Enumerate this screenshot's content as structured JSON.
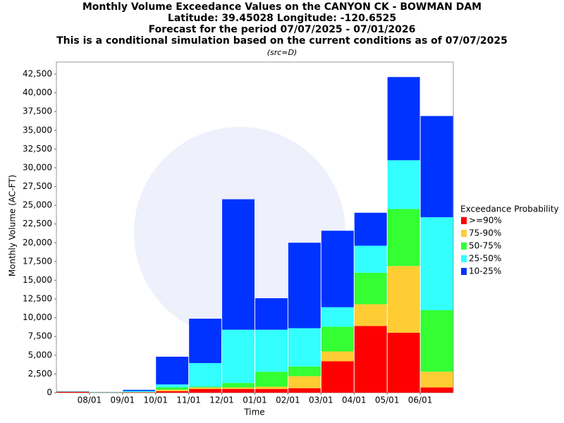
{
  "chart_data": {
    "type": "stacked_bar",
    "title": "Monthly Volume Exceedance Values on the CANYON CK - BOWMAN DAM",
    "subtitle": [
      "Latitude: 39.45028 Longitude: -120.6525",
      "Forecast for the period 07/07/2025 - 07/01/2026",
      "This is a conditional simulation based on the current conditions as of 07/07/2025"
    ],
    "source": "(src=D)",
    "x_label": "Time",
    "y_label": "Monthly Volume (AC-FT)",
    "categories": [
      null,
      "08/01",
      "09/01",
      "10/01",
      "11/01",
      "12/01",
      "01/01",
      "02/01",
      "03/01",
      "04/01",
      "05/01",
      "06/01"
    ],
    "series": [
      {
        "name": ">=90%",
        "color": "#ff0000",
        "values": [
          100,
          30,
          50,
          200,
          500,
          500,
          500,
          600,
          4200,
          8900,
          8000,
          700
        ]
      },
      {
        "name": "75-90%",
        "color": "#ffcc33",
        "values": [
          20,
          10,
          20,
          200,
          200,
          200,
          300,
          1600,
          1300,
          2900,
          8900,
          2100
        ]
      },
      {
        "name": "50-75%",
        "color": "#33ff33",
        "values": [
          20,
          10,
          30,
          300,
          100,
          600,
          2000,
          1300,
          3300,
          4200,
          7600,
          8200
        ]
      },
      {
        "name": "25-50%",
        "color": "#33ffff",
        "values": [
          20,
          40,
          130,
          400,
          3150,
          7100,
          5600,
          5100,
          2600,
          3600,
          6500,
          12400
        ]
      },
      {
        "name": "10-25%",
        "color": "#0033ff",
        "values": [
          40,
          10,
          150,
          3700,
          5920,
          17400,
          4200,
          11400,
          10200,
          4400,
          11100,
          13500
        ]
      }
    ],
    "legend_title": "Exceedance Probability",
    "legend": "right",
    "ylim": [
      0,
      44100
    ],
    "yticks": [
      0,
      {
        "value": 2500,
        "label": "2,500"
      },
      {
        "value": 5000,
        "label": "5,000"
      },
      {
        "value": 7500,
        "label": "7,500"
      },
      {
        "value": 10000,
        "label": "10,000"
      },
      {
        "value": 12500,
        "label": "12,500"
      },
      {
        "value": 15000,
        "label": "15,000"
      },
      {
        "value": 17500,
        "label": "17,500"
      },
      {
        "value": 20000,
        "label": "20,000"
      },
      {
        "value": 22500,
        "label": "22,500"
      },
      {
        "value": 25000,
        "label": "25,000"
      },
      {
        "value": 27500,
        "label": "27,500"
      },
      {
        "value": 30000,
        "label": "30,000"
      },
      {
        "value": 32500,
        "label": "32,500"
      },
      {
        "value": 35000,
        "label": "35,000"
      },
      {
        "value": 37500,
        "label": "37,500"
      },
      {
        "value": 40000,
        "label": "40,000"
      },
      {
        "value": 42500,
        "label": "42,500"
      }
    ],
    "grid": false
  }
}
